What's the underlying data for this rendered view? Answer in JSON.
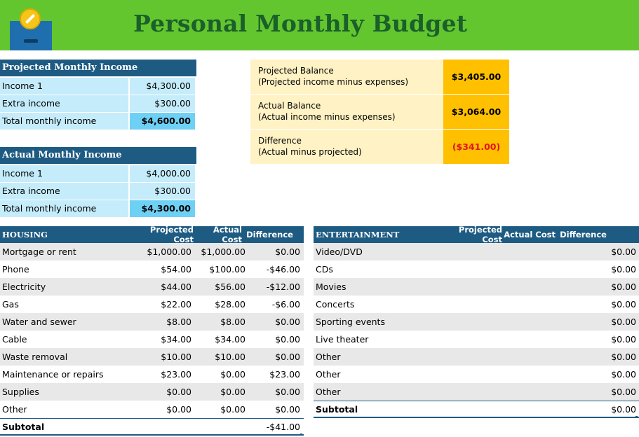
{
  "page_title": "Personal Monthly Budget",
  "colors": {
    "banner": "#63c62f",
    "title": "#1b5f2a",
    "header": "#1e5b83",
    "income_cell": "#c5ecfb",
    "income_total": "#6fd0f5",
    "balance_label": "#fff2c4",
    "balance_value": "#ffc000",
    "negative": "#e3141b",
    "row_shade": "#e8e8e8"
  },
  "icons": {
    "logo": "piggy-bank-coin-icon"
  },
  "projected_income": {
    "title": "Projected Monthly Income",
    "rows": [
      {
        "label": "Income 1",
        "value": "$4,300.00"
      },
      {
        "label": "Extra income",
        "value": "$300.00"
      }
    ],
    "total": {
      "label": "Total monthly income",
      "value": "$4,600.00"
    }
  },
  "actual_income": {
    "title": "Actual Monthly Income",
    "rows": [
      {
        "label": "Income 1",
        "value": "$4,000.00"
      },
      {
        "label": "Extra income",
        "value": "$300.00"
      }
    ],
    "total": {
      "label": "Total monthly income",
      "value": "$4,300.00"
    }
  },
  "balance": [
    {
      "label": "Projected Balance",
      "sub": "(Projected income minus expenses)",
      "value": "$3,405.00"
    },
    {
      "label": "Actual Balance",
      "sub": "(Actual income minus expenses)",
      "value": "$3,064.00"
    },
    {
      "label": "Difference",
      "sub": "(Actual minus projected)",
      "value": "($341.00)"
    }
  ],
  "housing": {
    "title": "HOUSING",
    "columns": [
      "Projected Cost",
      "Actual Cost",
      "Difference"
    ],
    "rows": [
      {
        "label": "Mortgage or rent",
        "projected": "$1,000.00",
        "actual": "$1,000.00",
        "difference": "$0.00"
      },
      {
        "label": "Phone",
        "projected": "$54.00",
        "actual": "$100.00",
        "difference": "-$46.00"
      },
      {
        "label": "Electricity",
        "projected": "$44.00",
        "actual": "$56.00",
        "difference": "-$12.00"
      },
      {
        "label": "Gas",
        "projected": "$22.00",
        "actual": "$28.00",
        "difference": "-$6.00"
      },
      {
        "label": "Water and sewer",
        "projected": "$8.00",
        "actual": "$8.00",
        "difference": "$0.00"
      },
      {
        "label": "Cable",
        "projected": "$34.00",
        "actual": "$34.00",
        "difference": "$0.00"
      },
      {
        "label": "Waste removal",
        "projected": "$10.00",
        "actual": "$10.00",
        "difference": "$0.00"
      },
      {
        "label": "Maintenance or repairs",
        "projected": "$23.00",
        "actual": "$0.00",
        "difference": "$23.00"
      },
      {
        "label": "Supplies",
        "projected": "$0.00",
        "actual": "$0.00",
        "difference": "$0.00"
      },
      {
        "label": "Other",
        "projected": "$0.00",
        "actual": "$0.00",
        "difference": "$0.00"
      }
    ],
    "subtotal": {
      "label": "Subtotal",
      "difference": "-$41.00"
    }
  },
  "entertainment": {
    "title": "ENTERTAINMENT",
    "columns": [
      "Projected Cost",
      "Actual Cost",
      "Difference"
    ],
    "rows": [
      {
        "label": "Video/DVD",
        "difference": "$0.00"
      },
      {
        "label": "CDs",
        "difference": "$0.00"
      },
      {
        "label": "Movies",
        "difference": "$0.00"
      },
      {
        "label": "Concerts",
        "difference": "$0.00"
      },
      {
        "label": "Sporting events",
        "difference": "$0.00"
      },
      {
        "label": "Live theater",
        "difference": "$0.00"
      },
      {
        "label": "Other",
        "difference": "$0.00"
      },
      {
        "label": "Other",
        "difference": "$0.00"
      },
      {
        "label": "Other",
        "difference": "$0.00"
      }
    ],
    "subtotal": {
      "label": "Subtotal",
      "difference": "$0.00"
    }
  }
}
